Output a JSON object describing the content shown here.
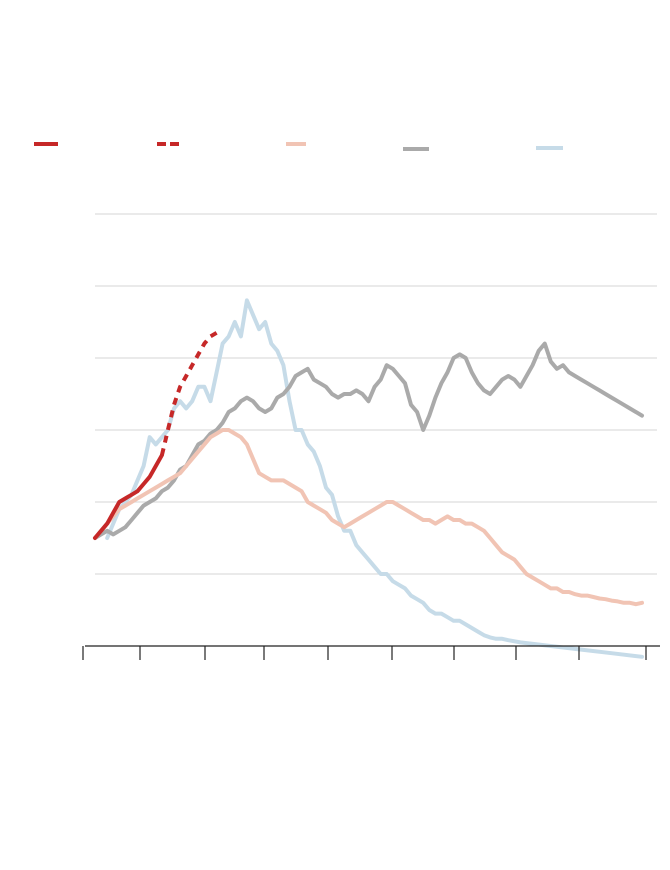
{
  "colors": {
    "background": "#ffffff",
    "grid": "#dddddd",
    "axis": "#222222",
    "current": "#c62828",
    "projection": "#c62828",
    "pink": "#f1c4b4",
    "gray": "#aaaaaa",
    "blue": "#c6dbe8"
  },
  "chart_data": {
    "type": "line",
    "title": "",
    "xlabel": "",
    "ylabel": "",
    "xlim": [
      0,
      90
    ],
    "ylim": [
      0,
      6
    ],
    "yticks": [
      1,
      2,
      3,
      4,
      5,
      6
    ],
    "xticks": [
      0,
      9,
      19.5,
      29,
      39.5,
      49.5,
      59.5,
      69.5,
      79.5,
      90
    ],
    "grid": true,
    "legend_position": "top",
    "series": [
      {
        "key": "blue",
        "style": "solid",
        "x": [
          2,
          3,
          4,
          5,
          6,
          7,
          8,
          9,
          10,
          11,
          12,
          13,
          14,
          15,
          16,
          17,
          18,
          19,
          20,
          21,
          22,
          23,
          24,
          25,
          26,
          27,
          28,
          29,
          30,
          31,
          32,
          33,
          34,
          35,
          36,
          37,
          38,
          39,
          40,
          41,
          42,
          43,
          44,
          45,
          46,
          47,
          48,
          49,
          50,
          51,
          52,
          53,
          54,
          55,
          56,
          57,
          58,
          59,
          60,
          61,
          62,
          63,
          64,
          65,
          66,
          67,
          68,
          70,
          75,
          80,
          85,
          90
        ],
        "y": [
          1.5,
          1.7,
          1.9,
          2.0,
          2.1,
          2.3,
          2.5,
          2.9,
          2.8,
          2.9,
          3.0,
          3.3,
          3.4,
          3.3,
          3.4,
          3.6,
          3.6,
          3.4,
          3.8,
          4.2,
          4.3,
          4.5,
          4.3,
          4.8,
          4.6,
          4.4,
          4.5,
          4.2,
          4.1,
          3.9,
          3.4,
          3.0,
          3.0,
          2.8,
          2.7,
          2.5,
          2.2,
          2.1,
          1.8,
          1.6,
          1.6,
          1.4,
          1.3,
          1.2,
          1.1,
          1.0,
          1.0,
          0.9,
          0.85,
          0.8,
          0.7,
          0.65,
          0.6,
          0.5,
          0.45,
          0.45,
          0.4,
          0.35,
          0.35,
          0.3,
          0.25,
          0.2,
          0.15,
          0.12,
          0.1,
          0.1,
          0.08,
          0.05,
          0.0,
          -0.05,
          -0.1,
          -0.15
        ]
      },
      {
        "key": "gray",
        "style": "solid",
        "x": [
          0,
          1,
          2,
          3,
          4,
          5,
          6,
          7,
          8,
          9,
          10,
          11,
          12,
          13,
          14,
          15,
          16,
          17,
          18,
          19,
          20,
          21,
          22,
          23,
          24,
          25,
          26,
          27,
          28,
          29,
          30,
          31,
          32,
          33,
          34,
          35,
          36,
          37,
          38,
          39,
          40,
          41,
          42,
          43,
          44,
          45,
          46,
          47,
          48,
          49,
          50,
          51,
          52,
          53,
          54,
          55,
          56,
          57,
          58,
          59,
          60,
          61,
          62,
          63,
          64,
          65,
          66,
          67,
          68,
          69,
          70,
          71,
          72,
          73,
          74,
          75,
          76,
          77,
          78,
          79,
          80,
          81,
          82,
          83,
          84,
          85,
          86,
          87,
          88,
          89,
          90
        ],
        "y": [
          1.5,
          1.55,
          1.6,
          1.55,
          1.6,
          1.65,
          1.75,
          1.85,
          1.95,
          2.0,
          2.05,
          2.15,
          2.2,
          2.3,
          2.45,
          2.5,
          2.65,
          2.8,
          2.85,
          2.95,
          3.0,
          3.1,
          3.25,
          3.3,
          3.4,
          3.45,
          3.4,
          3.3,
          3.25,
          3.3,
          3.45,
          3.5,
          3.6,
          3.75,
          3.8,
          3.85,
          3.7,
          3.65,
          3.6,
          3.5,
          3.45,
          3.5,
          3.5,
          3.55,
          3.5,
          3.4,
          3.6,
          3.7,
          3.9,
          3.85,
          3.75,
          3.65,
          3.35,
          3.25,
          3.0,
          3.2,
          3.45,
          3.65,
          3.8,
          4.0,
          4.05,
          4.0,
          3.8,
          3.65,
          3.55,
          3.5,
          3.6,
          3.7,
          3.75,
          3.7,
          3.6,
          3.75,
          3.9,
          4.1,
          4.2,
          3.95,
          3.85,
          3.9,
          3.8,
          3.75,
          3.7,
          3.65,
          3.6,
          3.55,
          3.5,
          3.45,
          3.4,
          3.35,
          3.3,
          3.25,
          3.2
        ]
      },
      {
        "key": "pink",
        "style": "solid",
        "x": [
          0,
          1,
          2,
          3,
          4,
          5,
          6,
          7,
          8,
          9,
          10,
          11,
          12,
          13,
          14,
          15,
          16,
          17,
          18,
          19,
          20,
          21,
          22,
          23,
          24,
          25,
          26,
          27,
          28,
          29,
          30,
          31,
          32,
          33,
          34,
          35,
          36,
          37,
          38,
          39,
          40,
          41,
          42,
          43,
          44,
          45,
          46,
          47,
          48,
          49,
          50,
          51,
          52,
          53,
          54,
          55,
          56,
          57,
          58,
          59,
          60,
          61,
          62,
          63,
          64,
          65,
          66,
          67,
          68,
          69,
          70,
          71,
          72,
          73,
          74,
          75,
          76,
          77,
          78,
          79,
          80,
          81,
          82,
          83,
          84,
          85,
          86,
          87,
          88,
          89,
          90
        ],
        "y": [
          1.5,
          1.6,
          1.7,
          1.8,
          1.9,
          1.95,
          2.0,
          2.05,
          2.1,
          2.15,
          2.2,
          2.25,
          2.3,
          2.35,
          2.4,
          2.5,
          2.6,
          2.7,
          2.8,
          2.9,
          2.95,
          3.0,
          3.0,
          2.95,
          2.9,
          2.8,
          2.6,
          2.4,
          2.35,
          2.3,
          2.3,
          2.3,
          2.25,
          2.2,
          2.15,
          2.0,
          1.95,
          1.9,
          1.85,
          1.75,
          1.7,
          1.65,
          1.7,
          1.75,
          1.8,
          1.85,
          1.9,
          1.95,
          2.0,
          2.0,
          1.95,
          1.9,
          1.85,
          1.8,
          1.75,
          1.75,
          1.7,
          1.75,
          1.8,
          1.75,
          1.75,
          1.7,
          1.7,
          1.65,
          1.6,
          1.5,
          1.4,
          1.3,
          1.25,
          1.2,
          1.1,
          1.0,
          0.95,
          0.9,
          0.85,
          0.8,
          0.8,
          0.75,
          0.75,
          0.72,
          0.7,
          0.7,
          0.68,
          0.66,
          0.65,
          0.63,
          0.62,
          0.6,
          0.6,
          0.58,
          0.6
        ]
      },
      {
        "key": "current",
        "style": "solid",
        "x": [
          0,
          1,
          2,
          3,
          4,
          5,
          6,
          7,
          8,
          9,
          10,
          11
        ],
        "y": [
          1.5,
          1.6,
          1.7,
          1.85,
          2.0,
          2.05,
          2.1,
          2.15,
          2.25,
          2.35,
          2.5,
          2.65
        ]
      },
      {
        "key": "projection",
        "style": "dashed",
        "x": [
          11,
          12,
          13,
          14,
          15,
          16,
          17,
          18,
          19,
          20
        ],
        "y": [
          2.65,
          3.0,
          3.35,
          3.6,
          3.75,
          3.9,
          4.05,
          4.2,
          4.3,
          4.35
        ]
      }
    ]
  }
}
